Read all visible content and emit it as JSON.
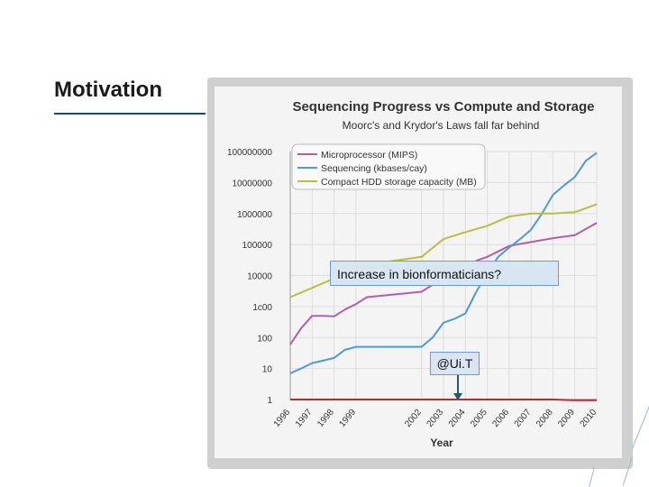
{
  "slide": {
    "title": "Motivation",
    "callout_main": "Increase in bionformaticians?",
    "callout_uit": "@Ui.T"
  },
  "chart_data": {
    "type": "line",
    "title": "Sequencing Progress vs Compute and Storage",
    "subtitle": "Moorc's and Krydor's Laws fall far behind",
    "xlabel": "Year",
    "ylabel": "",
    "yscale": "log",
    "ylim": [
      1,
      100000000
    ],
    "y_ticks": [
      1,
      10,
      100,
      1000,
      10000,
      100000,
      1000000,
      10000000,
      100000000
    ],
    "y_tick_labels": [
      "1",
      "10",
      "100",
      "1c00",
      "10000",
      "100000",
      "1000000",
      "10000000",
      "100000000"
    ],
    "x_ticks": [
      1996,
      1997,
      1998,
      1999,
      2002,
      2003,
      2004,
      2005,
      2006,
      2007,
      2008,
      2009,
      2010
    ],
    "x_tick_labels": [
      "1996",
      "1997",
      "1998",
      "1999",
      "2002",
      "2003",
      "2004",
      "2005",
      "2006",
      "2007",
      "2008",
      "2009",
      "2010"
    ],
    "grid": true,
    "legend_position": "top-left",
    "series": [
      {
        "name": "Microprocessor (MIPS)",
        "color": "#b060a8",
        "x": [
          1996,
          1996.5,
          1997,
          1997.5,
          1998,
          1998.5,
          1999,
          1999.5,
          2002,
          2002.5,
          2003,
          2003.5,
          2004,
          2004.5,
          2005,
          2005.5,
          2006,
          2007,
          2008,
          2009,
          2010
        ],
        "y": [
          60,
          200,
          500,
          500,
          480,
          800,
          1200,
          2000,
          3000,
          5000,
          8000,
          10000,
          12000,
          30000,
          40000,
          60000,
          90000,
          120000,
          160000,
          200000,
          500000
        ]
      },
      {
        "name": "Sequencing (kbases/cay)",
        "color": "#4f9bd0",
        "x": [
          1996,
          1996.5,
          1997,
          1997.5,
          1998,
          1998.5,
          1999,
          1999.5,
          2002,
          2002.5,
          2003,
          2003.5,
          2004,
          2004.5,
          2005,
          2005.5,
          2006,
          2006.5,
          2007,
          2007.5,
          2008,
          2008.5,
          2009,
          2009.5,
          2010
        ],
        "y": [
          7,
          10,
          15,
          18,
          22,
          40,
          50,
          50,
          50,
          100,
          300,
          400,
          600,
          3000,
          12000,
          40000,
          80000,
          150000,
          300000,
          1000000,
          4000000,
          8000000,
          15000000,
          50000000,
          90000000
        ]
      },
      {
        "name": "Compact HDD storage capacity (MB)",
        "color": "#b8bf40",
        "x": [
          1996,
          1997,
          1998,
          1999,
          2002,
          2003,
          2004,
          2005,
          2006,
          2007,
          2008,
          2009,
          2010
        ],
        "y": [
          2000,
          4000,
          8000,
          20000,
          40000,
          150000,
          250000,
          400000,
          800000,
          1000000,
          1000000,
          1100000,
          2000000
        ]
      },
      {
        "name": "",
        "color": "#c0282d",
        "x": [
          1996,
          2008,
          2009,
          2010
        ],
        "y": [
          1,
          1,
          0.95,
          0.95
        ]
      }
    ]
  }
}
